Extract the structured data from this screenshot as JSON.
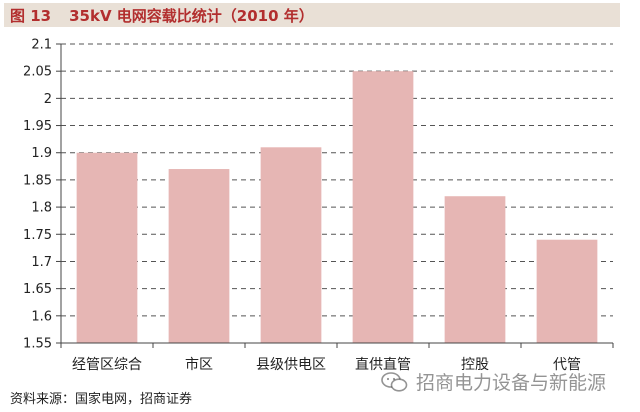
{
  "header": {
    "figure_label": "图 13",
    "title": "35kV 电网容载比统计（2010 年）"
  },
  "footer": {
    "source": "资料来源：国家电网，招商证券"
  },
  "watermark": {
    "text": "招商电力设备与新能源",
    "icon": "wechat-icon"
  },
  "colors": {
    "bar": "#e6b6b4",
    "title_bar_bg": "#e9e0d6",
    "title_text": "#b22e2e",
    "grid": "#555555"
  },
  "chart_data": {
    "type": "bar",
    "categories": [
      "经管区综合",
      "市区",
      "县级供电区",
      "直供直管",
      "控股",
      "代管"
    ],
    "values": [
      1.9,
      1.87,
      1.91,
      2.05,
      1.82,
      1.74
    ],
    "title": "",
    "xlabel": "",
    "ylabel": "",
    "ylim": [
      1.55,
      2.1
    ],
    "yticks": [
      1.55,
      1.6,
      1.65,
      1.7,
      1.75,
      1.8,
      1.85,
      1.9,
      1.95,
      2,
      2.05,
      2.1
    ],
    "ytick_labels": [
      "1.55",
      "1.6",
      "1.65",
      "1.7",
      "1.75",
      "1.8",
      "1.85",
      "1.9",
      "1.95",
      "2",
      "2.05",
      "2.1"
    ],
    "grid": true,
    "grid_style": "dashed",
    "legend": "none"
  }
}
